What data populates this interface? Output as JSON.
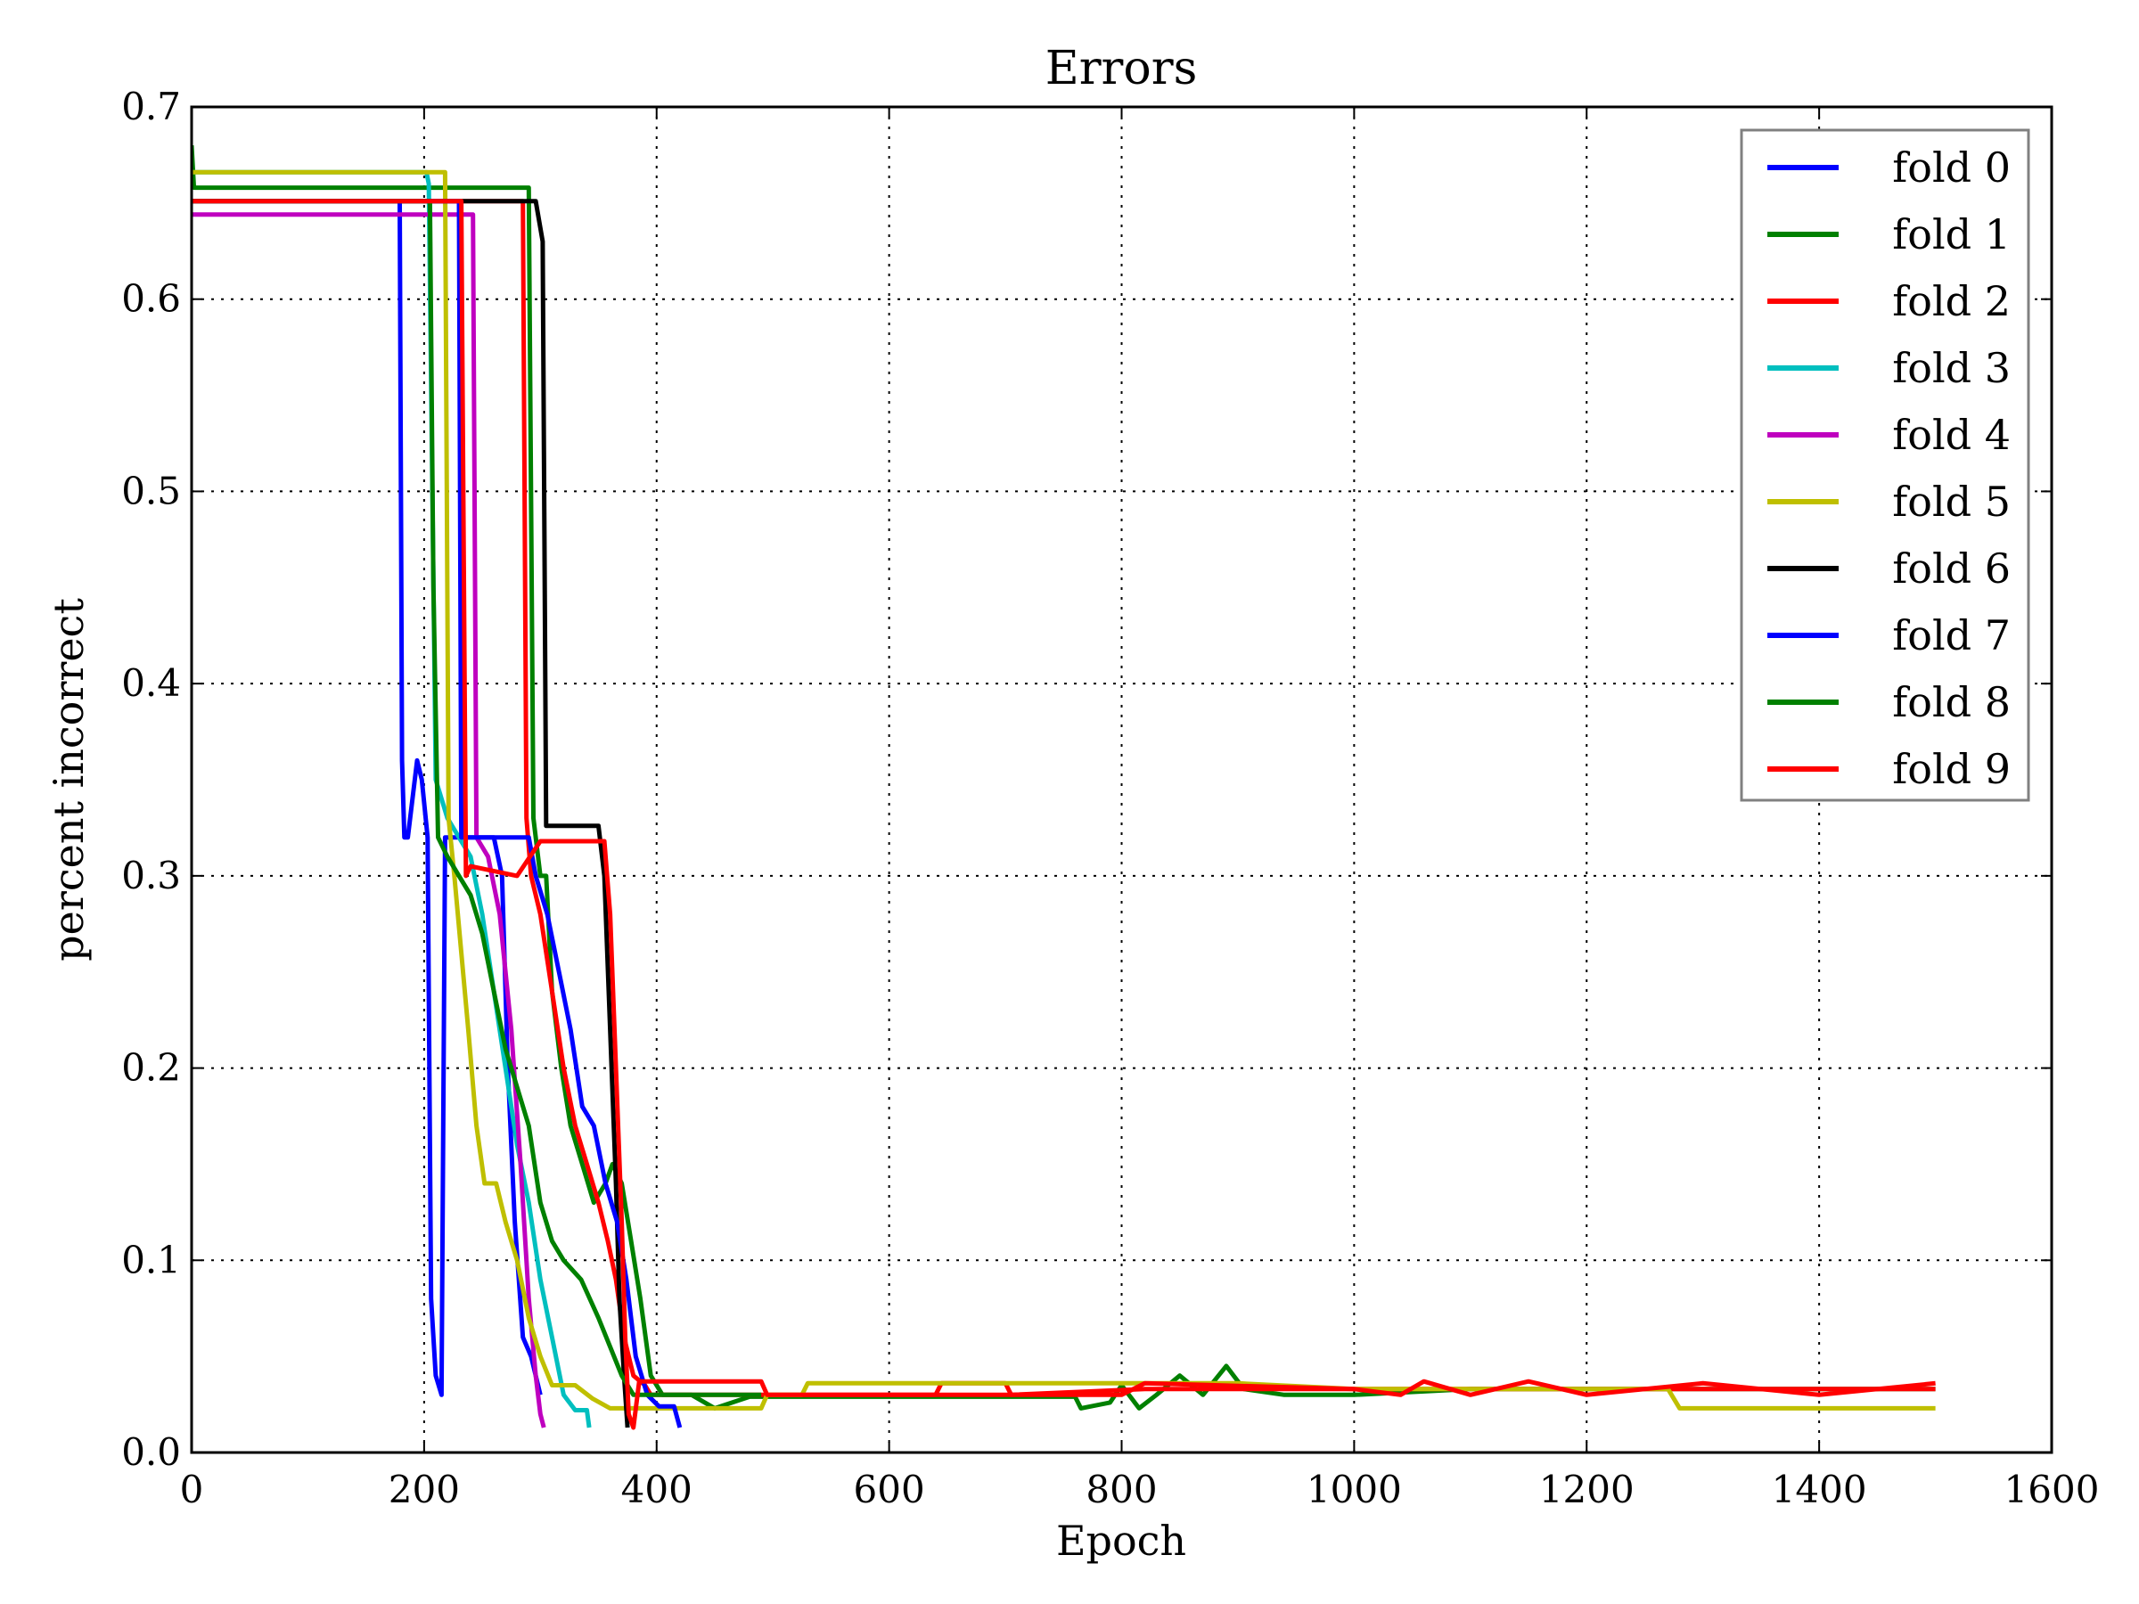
{
  "chart_data": {
    "type": "line",
    "title": "Errors",
    "xlabel": "Epoch",
    "ylabel": "percent incorrect",
    "xlim": [
      0,
      1600
    ],
    "ylim": [
      0,
      0.7
    ],
    "x_ticks": [
      0,
      200,
      400,
      600,
      800,
      1000,
      1200,
      1400,
      1600
    ],
    "y_ticks": [
      0.0,
      0.1,
      0.2,
      0.3,
      0.4,
      0.5,
      0.6,
      0.7
    ],
    "x_tick_labels": [
      "0",
      "200",
      "400",
      "600",
      "800",
      "1000",
      "1200",
      "1400",
      "1600"
    ],
    "y_tick_labels": [
      "0.0",
      "0.1",
      "0.2",
      "0.3",
      "0.4",
      "0.5",
      "0.6",
      "0.7"
    ],
    "grid": true,
    "legend_position": "top-right",
    "series": [
      {
        "name": "fold 0",
        "color": "#0000ff",
        "points": [
          [
            0,
            0.651
          ],
          [
            179,
            0.651
          ],
          [
            181,
            0.36
          ],
          [
            183,
            0.32
          ],
          [
            186,
            0.32
          ],
          [
            190,
            0.34
          ],
          [
            194,
            0.36
          ],
          [
            198,
            0.35
          ],
          [
            203,
            0.32
          ],
          [
            206,
            0.08
          ],
          [
            210,
            0.04
          ],
          [
            215,
            0.03
          ],
          [
            218,
            0.32
          ],
          [
            260,
            0.32
          ],
          [
            267,
            0.3
          ],
          [
            272,
            0.2
          ],
          [
            278,
            0.12
          ],
          [
            285,
            0.06
          ],
          [
            292,
            0.05
          ],
          [
            300,
            0.03
          ]
        ]
      },
      {
        "name": "fold 1",
        "color": "#008000",
        "points": [
          [
            0,
            0.68
          ],
          [
            2,
            0.658
          ],
          [
            290,
            0.658
          ],
          [
            294,
            0.33
          ],
          [
            300,
            0.3
          ],
          [
            305,
            0.3
          ],
          [
            310,
            0.24
          ],
          [
            318,
            0.2
          ],
          [
            326,
            0.17
          ],
          [
            336,
            0.15
          ],
          [
            346,
            0.13
          ],
          [
            356,
            0.14
          ],
          [
            362,
            0.15
          ],
          [
            370,
            0.14
          ],
          [
            378,
            0.11
          ],
          [
            386,
            0.08
          ],
          [
            395,
            0.04
          ],
          [
            405,
            0.03
          ],
          [
            430,
            0.03
          ],
          [
            450,
            0.023
          ],
          [
            480,
            0.029
          ],
          [
            760,
            0.029
          ],
          [
            765,
            0.023
          ],
          [
            790,
            0.026
          ],
          [
            800,
            0.035
          ],
          [
            815,
            0.023
          ],
          [
            830,
            0.03
          ],
          [
            850,
            0.04
          ],
          [
            870,
            0.03
          ],
          [
            890,
            0.045
          ],
          [
            905,
            0.033
          ],
          [
            940,
            0.03
          ],
          [
            1000,
            0.03
          ],
          [
            1100,
            0.033
          ],
          [
            1300,
            0.033
          ],
          [
            1500,
            0.033
          ]
        ]
      },
      {
        "name": "fold 2",
        "color": "#ff0000",
        "points": [
          [
            0,
            0.651
          ],
          [
            285,
            0.651
          ],
          [
            288,
            0.33
          ],
          [
            292,
            0.3
          ],
          [
            300,
            0.28
          ],
          [
            310,
            0.24
          ],
          [
            320,
            0.2
          ],
          [
            330,
            0.17
          ],
          [
            340,
            0.15
          ],
          [
            350,
            0.13
          ],
          [
            358,
            0.11
          ],
          [
            365,
            0.09
          ],
          [
            372,
            0.06
          ],
          [
            380,
            0.04
          ],
          [
            390,
            0.035
          ],
          [
            395,
            0.03
          ],
          [
            500,
            0.03
          ],
          [
            600,
            0.03
          ],
          [
            640,
            0.03
          ],
          [
            645,
            0.036
          ],
          [
            700,
            0.036
          ],
          [
            705,
            0.03
          ],
          [
            820,
            0.033
          ],
          [
            1000,
            0.033
          ],
          [
            1500,
            0.033
          ]
        ]
      },
      {
        "name": "fold 3",
        "color": "#00bfbf",
        "points": [
          [
            0,
            0.666
          ],
          [
            202,
            0.666
          ],
          [
            204,
            0.66
          ],
          [
            210,
            0.35
          ],
          [
            220,
            0.33
          ],
          [
            230,
            0.32
          ],
          [
            240,
            0.31
          ],
          [
            250,
            0.28
          ],
          [
            260,
            0.24
          ],
          [
            270,
            0.2
          ],
          [
            280,
            0.16
          ],
          [
            290,
            0.13
          ],
          [
            300,
            0.09
          ],
          [
            310,
            0.06
          ],
          [
            320,
            0.03
          ],
          [
            330,
            0.022
          ],
          [
            340,
            0.022
          ],
          [
            342,
            0.013
          ]
        ]
      },
      {
        "name": "fold 4",
        "color": "#bf00bf",
        "points": [
          [
            0,
            0.644
          ],
          [
            237,
            0.644
          ],
          [
            242,
            0.644
          ],
          [
            245,
            0.32
          ],
          [
            255,
            0.31
          ],
          [
            265,
            0.28
          ],
          [
            275,
            0.22
          ],
          [
            283,
            0.15
          ],
          [
            290,
            0.08
          ],
          [
            296,
            0.04
          ],
          [
            300,
            0.02
          ],
          [
            303,
            0.013
          ]
        ]
      },
      {
        "name": "fold 5",
        "color": "#bfbf00",
        "points": [
          [
            0,
            0.666
          ],
          [
            218,
            0.666
          ],
          [
            221,
            0.33
          ],
          [
            226,
            0.3
          ],
          [
            232,
            0.26
          ],
          [
            238,
            0.22
          ],
          [
            245,
            0.17
          ],
          [
            252,
            0.14
          ],
          [
            262,
            0.14
          ],
          [
            270,
            0.12
          ],
          [
            280,
            0.1
          ],
          [
            290,
            0.07
          ],
          [
            300,
            0.05
          ],
          [
            310,
            0.035
          ],
          [
            330,
            0.035
          ],
          [
            345,
            0.028
          ],
          [
            360,
            0.023
          ],
          [
            490,
            0.023
          ],
          [
            495,
            0.03
          ],
          [
            525,
            0.03
          ],
          [
            530,
            0.036
          ],
          [
            800,
            0.036
          ],
          [
            900,
            0.036
          ],
          [
            1000,
            0.033
          ],
          [
            1270,
            0.033
          ],
          [
            1280,
            0.023
          ],
          [
            1500,
            0.023
          ]
        ]
      },
      {
        "name": "fold 6",
        "color": "#000000",
        "points": [
          [
            0,
            0.651
          ],
          [
            296,
            0.651
          ],
          [
            302,
            0.63
          ],
          [
            305,
            0.326
          ],
          [
            350,
            0.326
          ],
          [
            355,
            0.3
          ],
          [
            360,
            0.22
          ],
          [
            365,
            0.14
          ],
          [
            368,
            0.08
          ],
          [
            372,
            0.04
          ],
          [
            375,
            0.013
          ]
        ]
      },
      {
        "name": "fold 7",
        "color": "#0000ff",
        "points": [
          [
            0,
            0.651
          ],
          [
            230,
            0.651
          ],
          [
            232,
            0.32
          ],
          [
            290,
            0.32
          ],
          [
            296,
            0.3
          ],
          [
            306,
            0.28
          ],
          [
            316,
            0.25
          ],
          [
            326,
            0.22
          ],
          [
            336,
            0.18
          ],
          [
            346,
            0.17
          ],
          [
            356,
            0.14
          ],
          [
            366,
            0.12
          ],
          [
            374,
            0.09
          ],
          [
            382,
            0.05
          ],
          [
            392,
            0.03
          ],
          [
            402,
            0.024
          ],
          [
            415,
            0.024
          ],
          [
            420,
            0.013
          ]
        ]
      },
      {
        "name": "fold 8",
        "color": "#008000",
        "points": [
          [
            0,
            0.651
          ],
          [
            205,
            0.651
          ],
          [
            208,
            0.45
          ],
          [
            212,
            0.32
          ],
          [
            220,
            0.31
          ],
          [
            230,
            0.3
          ],
          [
            240,
            0.29
          ],
          [
            250,
            0.27
          ],
          [
            260,
            0.24
          ],
          [
            270,
            0.21
          ],
          [
            280,
            0.19
          ],
          [
            290,
            0.17
          ],
          [
            300,
            0.13
          ],
          [
            310,
            0.11
          ],
          [
            320,
            0.1
          ],
          [
            335,
            0.09
          ],
          [
            350,
            0.07
          ],
          [
            360,
            0.055
          ],
          [
            370,
            0.04
          ],
          [
            380,
            0.03
          ],
          [
            450,
            0.03
          ],
          [
            490,
            0.03
          ]
        ]
      },
      {
        "name": "fold 9",
        "color": "#ff0000",
        "points": [
          [
            0,
            0.651
          ],
          [
            232,
            0.651
          ],
          [
            236,
            0.3
          ],
          [
            240,
            0.305
          ],
          [
            280,
            0.3
          ],
          [
            300,
            0.318
          ],
          [
            355,
            0.318
          ],
          [
            360,
            0.28
          ],
          [
            365,
            0.2
          ],
          [
            370,
            0.12
          ],
          [
            373,
            0.06
          ],
          [
            376,
            0.02
          ],
          [
            380,
            0.013
          ],
          [
            385,
            0.037
          ],
          [
            490,
            0.037
          ],
          [
            495,
            0.03
          ],
          [
            800,
            0.03
          ],
          [
            820,
            0.036
          ],
          [
            1000,
            0.033
          ],
          [
            1040,
            0.03
          ],
          [
            1060,
            0.037
          ],
          [
            1100,
            0.03
          ],
          [
            1150,
            0.037
          ],
          [
            1200,
            0.03
          ],
          [
            1300,
            0.036
          ],
          [
            1400,
            0.03
          ],
          [
            1500,
            0.036
          ]
        ]
      }
    ]
  }
}
